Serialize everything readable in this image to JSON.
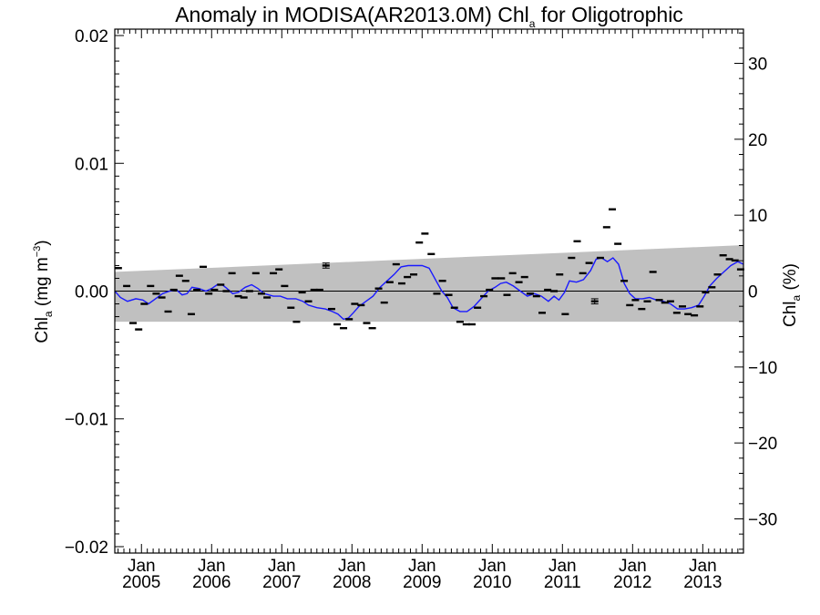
{
  "chart_data": {
    "type": "line",
    "title": "Anomaly in MODISA(AR2013.0M) Chl",
    "title_sub": "a",
    "title_tail": " for Oligotrophic",
    "ylabel": {
      "base": "Chl",
      "sub": "a",
      "mid": " (mg m",
      "sup": "−3",
      "end": ")"
    },
    "ylabel_right": {
      "base": "Chl",
      "sub": "a",
      "end": " (%)"
    },
    "ylim": [
      -0.0205,
      0.0205
    ],
    "ylim_right": [
      -34.5,
      34.5
    ],
    "xlim": [
      2004.62,
      2013.58
    ],
    "yticks": [
      {
        "v": -0.02,
        "label": "−0.02"
      },
      {
        "v": -0.01,
        "label": "−0.01"
      },
      {
        "v": 0.0,
        "label": "0.00"
      },
      {
        "v": 0.01,
        "label": "0.01"
      },
      {
        "v": 0.02,
        "label": "0.02"
      }
    ],
    "yticks_right": [
      {
        "v": -30,
        "label": "−30"
      },
      {
        "v": -20,
        "label": "−20"
      },
      {
        "v": -10,
        "label": "−10"
      },
      {
        "v": 0,
        "label": "0"
      },
      {
        "v": 10,
        "label": "10"
      },
      {
        "v": 20,
        "label": "20"
      },
      {
        "v": 30,
        "label": "30"
      }
    ],
    "xticks": [
      {
        "v": 2005,
        "month": "Jan",
        "year": "2005"
      },
      {
        "v": 2006,
        "month": "Jan",
        "year": "2006"
      },
      {
        "v": 2007,
        "month": "Jan",
        "year": "2007"
      },
      {
        "v": 2008,
        "month": "Jan",
        "year": "2008"
      },
      {
        "v": 2009,
        "month": "Jan",
        "year": "2009"
      },
      {
        "v": 2010,
        "month": "Jan",
        "year": "2010"
      },
      {
        "v": 2011,
        "month": "Jan",
        "year": "2011"
      },
      {
        "v": 2012,
        "month": "Jan",
        "year": "2012"
      },
      {
        "v": 2013,
        "month": "Jan",
        "year": "2013"
      }
    ],
    "band": {
      "color": "#c0c0c0",
      "upper": [
        [
          2004.62,
          0.0015
        ],
        [
          2013.58,
          0.0036
        ]
      ],
      "lower": [
        [
          2004.62,
          -0.0024
        ],
        [
          2013.58,
          -0.0024
        ]
      ]
    },
    "zero_line": 0,
    "monthly_points": [
      [
        2004.67,
        0.0018
      ],
      [
        2004.79,
        0.0004
      ],
      [
        2004.88,
        -0.0025
      ],
      [
        2004.96,
        -0.003
      ],
      [
        2005.04,
        -0.001
      ],
      [
        2005.13,
        0.0004
      ],
      [
        2005.21,
        -0.0002
      ],
      [
        2005.29,
        -0.0005
      ],
      [
        2005.38,
        -0.0016
      ],
      [
        2005.46,
        0.0001
      ],
      [
        2005.54,
        0.0012
      ],
      [
        2005.63,
        0.0008
      ],
      [
        2005.71,
        -0.0018
      ],
      [
        2005.79,
        0.0001
      ],
      [
        2005.88,
        0.0019
      ],
      [
        2005.96,
        -0.0002
      ],
      [
        2006.04,
        0.0001
      ],
      [
        2006.13,
        0.0005
      ],
      [
        2006.21,
        0.0
      ],
      [
        2006.29,
        0.0014
      ],
      [
        2006.38,
        -0.0004
      ],
      [
        2006.46,
        -0.0005
      ],
      [
        2006.54,
        0.0
      ],
      [
        2006.63,
        0.0014
      ],
      [
        2006.71,
        -0.0002
      ],
      [
        2006.79,
        -0.0005
      ],
      [
        2006.88,
        0.0014
      ],
      [
        2006.96,
        0.0017
      ],
      [
        2007.04,
        0.0004
      ],
      [
        2007.13,
        -0.0013
      ],
      [
        2007.21,
        -0.0024
      ],
      [
        2007.29,
        -0.0001
      ],
      [
        2007.38,
        -0.0008
      ],
      [
        2007.46,
        0.0001
      ],
      [
        2007.54,
        0.0001
      ],
      [
        2007.63,
        0.002
      ],
      [
        2007.71,
        -0.0014
      ],
      [
        2007.79,
        -0.0026
      ],
      [
        2007.88,
        -0.0029
      ],
      [
        2007.96,
        -0.0022
      ],
      [
        2008.04,
        -0.001
      ],
      [
        2008.13,
        -0.0011
      ],
      [
        2008.21,
        -0.0025
      ],
      [
        2008.29,
        -0.0029
      ],
      [
        2008.38,
        0.0002
      ],
      [
        2008.46,
        -0.0009
      ],
      [
        2008.54,
        0.0007
      ],
      [
        2008.63,
        0.0021
      ],
      [
        2008.71,
        0.0006
      ],
      [
        2008.79,
        0.0011
      ],
      [
        2008.88,
        0.0013
      ],
      [
        2008.96,
        0.0038
      ],
      [
        2009.04,
        0.0045
      ],
      [
        2009.13,
        0.0029
      ],
      [
        2009.21,
        -0.0002
      ],
      [
        2009.29,
        0.0008
      ],
      [
        2009.38,
        -0.0003
      ],
      [
        2009.46,
        -0.0013
      ],
      [
        2009.54,
        -0.0024
      ],
      [
        2009.63,
        -0.0026
      ],
      [
        2009.71,
        -0.0026
      ],
      [
        2009.79,
        -0.0013
      ],
      [
        2009.88,
        -0.0004
      ],
      [
        2009.96,
        0.0001
      ],
      [
        2010.04,
        0.001
      ],
      [
        2010.13,
        0.001
      ],
      [
        2010.21,
        -0.0003
      ],
      [
        2010.29,
        0.0014
      ],
      [
        2010.38,
        0.0007
      ],
      [
        2010.46,
        0.0011
      ],
      [
        2010.54,
        -0.0002
      ],
      [
        2010.63,
        -0.0004
      ],
      [
        2010.71,
        -0.0017
      ],
      [
        2010.79,
        0.0001
      ],
      [
        2010.88,
        0.0
      ],
      [
        2010.96,
        0.0013
      ],
      [
        2011.04,
        -0.0018
      ],
      [
        2011.13,
        0.0026
      ],
      [
        2011.21,
        0.0039
      ],
      [
        2011.29,
        0.0014
      ],
      [
        2011.38,
        0.0022
      ],
      [
        2011.46,
        -0.0008
      ],
      [
        2011.54,
        0.0026
      ],
      [
        2011.63,
        0.005
      ],
      [
        2011.71,
        0.0064
      ],
      [
        2011.79,
        0.0037
      ],
      [
        2011.88,
        0.0008
      ],
      [
        2011.96,
        -0.0011
      ],
      [
        2012.04,
        -0.0007
      ],
      [
        2012.13,
        -0.0014
      ],
      [
        2012.21,
        -0.0008
      ],
      [
        2012.29,
        0.0015
      ],
      [
        2012.38,
        -0.0007
      ],
      [
        2012.46,
        -0.0009
      ],
      [
        2012.54,
        -0.0008
      ],
      [
        2012.63,
        -0.0017
      ],
      [
        2012.71,
        -0.0012
      ],
      [
        2012.79,
        -0.0018
      ],
      [
        2012.88,
        -0.0019
      ],
      [
        2012.96,
        -0.0012
      ],
      [
        2013.04,
        -0.0001
      ],
      [
        2013.13,
        0.0003
      ],
      [
        2013.21,
        0.0013
      ],
      [
        2013.29,
        0.0028
      ],
      [
        2013.38,
        0.0025
      ],
      [
        2013.46,
        0.0024
      ],
      [
        2013.54,
        0.0017
      ]
    ],
    "error_bars": [
      {
        "x": 2007.63,
        "y": 0.002,
        "err": 0.0002
      },
      {
        "x": 2011.46,
        "y": -0.0008,
        "err": 0.0002
      }
    ],
    "series": [
      {
        "color": "#1a1aff",
        "points": [
          [
            2004.62,
            0.0
          ],
          [
            2004.7,
            -0.0005
          ],
          [
            2004.8,
            -0.0008
          ],
          [
            2004.92,
            -0.0006
          ],
          [
            2005.02,
            -0.0007
          ],
          [
            2005.1,
            -0.001
          ],
          [
            2005.2,
            -0.0006
          ],
          [
            2005.3,
            -0.0002
          ],
          [
            2005.4,
            0.0
          ],
          [
            2005.5,
            0.0001
          ],
          [
            2005.58,
            -0.0003
          ],
          [
            2005.65,
            -0.0002
          ],
          [
            2005.72,
            0.0003
          ],
          [
            2005.82,
            0.0002
          ],
          [
            2005.92,
            0.0
          ],
          [
            2006.0,
            0.0002
          ],
          [
            2006.08,
            0.0005
          ],
          [
            2006.15,
            0.0005
          ],
          [
            2006.22,
            0.0002
          ],
          [
            2006.3,
            -0.0002
          ],
          [
            2006.38,
            -0.0001
          ],
          [
            2006.48,
            0.0003
          ],
          [
            2006.57,
            0.0005
          ],
          [
            2006.66,
            0.0002
          ],
          [
            2006.75,
            -0.0002
          ],
          [
            2006.88,
            -0.0004
          ],
          [
            2006.98,
            -0.0004
          ],
          [
            2007.08,
            -0.0006
          ],
          [
            2007.2,
            -0.0006
          ],
          [
            2007.3,
            -0.0008
          ],
          [
            2007.38,
            -0.0011
          ],
          [
            2007.5,
            -0.0013
          ],
          [
            2007.62,
            -0.0014
          ],
          [
            2007.72,
            -0.0016
          ],
          [
            2007.8,
            -0.0018
          ],
          [
            2007.88,
            -0.0022
          ],
          [
            2007.95,
            -0.0021
          ],
          [
            2008.02,
            -0.0017
          ],
          [
            2008.1,
            -0.0012
          ],
          [
            2008.2,
            -0.0008
          ],
          [
            2008.3,
            -0.0004
          ],
          [
            2008.4,
            0.0003
          ],
          [
            2008.5,
            0.0008
          ],
          [
            2008.6,
            0.0013
          ],
          [
            2008.7,
            0.0019
          ],
          [
            2008.8,
            0.002
          ],
          [
            2008.9,
            0.002
          ],
          [
            2009.0,
            0.002
          ],
          [
            2009.1,
            0.0018
          ],
          [
            2009.2,
            0.0008
          ],
          [
            2009.28,
            0.0
          ],
          [
            2009.36,
            -0.0005
          ],
          [
            2009.44,
            -0.0013
          ],
          [
            2009.54,
            -0.0016
          ],
          [
            2009.64,
            -0.0016
          ],
          [
            2009.74,
            -0.0012
          ],
          [
            2009.84,
            -0.0006
          ],
          [
            2009.94,
            0.0
          ],
          [
            2010.04,
            0.0003
          ],
          [
            2010.12,
            0.0006
          ],
          [
            2010.2,
            0.0007
          ],
          [
            2010.3,
            0.0004
          ],
          [
            2010.4,
            0.0
          ],
          [
            2010.5,
            -0.0004
          ],
          [
            2010.6,
            -0.0002
          ],
          [
            2010.7,
            -0.0004
          ],
          [
            2010.8,
            -0.0008
          ],
          [
            2010.88,
            -0.0004
          ],
          [
            2010.95,
            -0.0007
          ],
          [
            2011.03,
            -0.0001
          ],
          [
            2011.1,
            0.0008
          ],
          [
            2011.2,
            0.0007
          ],
          [
            2011.3,
            0.0009
          ],
          [
            2011.4,
            0.0016
          ],
          [
            2011.48,
            0.0025
          ],
          [
            2011.56,
            0.0026
          ],
          [
            2011.64,
            0.0023
          ],
          [
            2011.72,
            0.0026
          ],
          [
            2011.8,
            0.0021
          ],
          [
            2011.88,
            0.0006
          ],
          [
            2011.96,
            -0.0002
          ],
          [
            2012.04,
            -0.0006
          ],
          [
            2012.14,
            -0.0006
          ],
          [
            2012.24,
            -0.0005
          ],
          [
            2012.34,
            -0.0007
          ],
          [
            2012.44,
            -0.0008
          ],
          [
            2012.54,
            -0.001
          ],
          [
            2012.64,
            -0.0014
          ],
          [
            2012.74,
            -0.0014
          ],
          [
            2012.84,
            -0.0013
          ],
          [
            2012.94,
            -0.0011
          ],
          [
            2013.02,
            -0.0004
          ],
          [
            2013.1,
            0.0004
          ],
          [
            2013.2,
            0.001
          ],
          [
            2013.3,
            0.0015
          ],
          [
            2013.4,
            0.002
          ],
          [
            2013.5,
            0.0023
          ],
          [
            2013.58,
            0.0021
          ]
        ]
      }
    ]
  }
}
